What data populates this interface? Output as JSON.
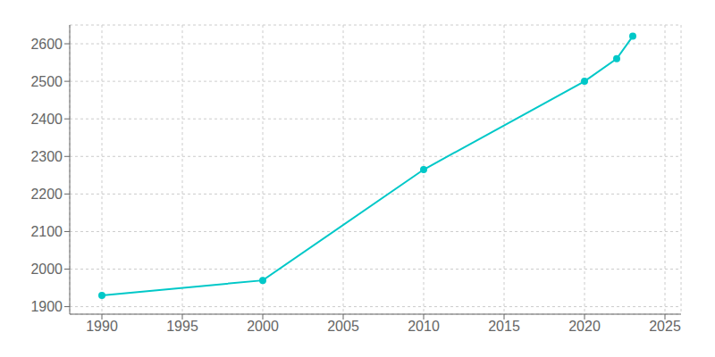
{
  "chart_data": {
    "type": "line",
    "x": [
      1990,
      2000,
      2010,
      2020,
      2022,
      2023
    ],
    "values": [
      1930,
      1970,
      2265,
      2500,
      2560,
      2620
    ],
    "color": "#00c8c8",
    "marker": "circle",
    "xlim": [
      1988,
      2026
    ],
    "ylim": [
      1880,
      2650
    ],
    "xticks": [
      1990,
      1995,
      2000,
      2005,
      2010,
      2015,
      2020,
      2025
    ],
    "yticks": [
      1900,
      2000,
      2100,
      2200,
      2300,
      2400,
      2500,
      2600
    ],
    "grid": true
  }
}
